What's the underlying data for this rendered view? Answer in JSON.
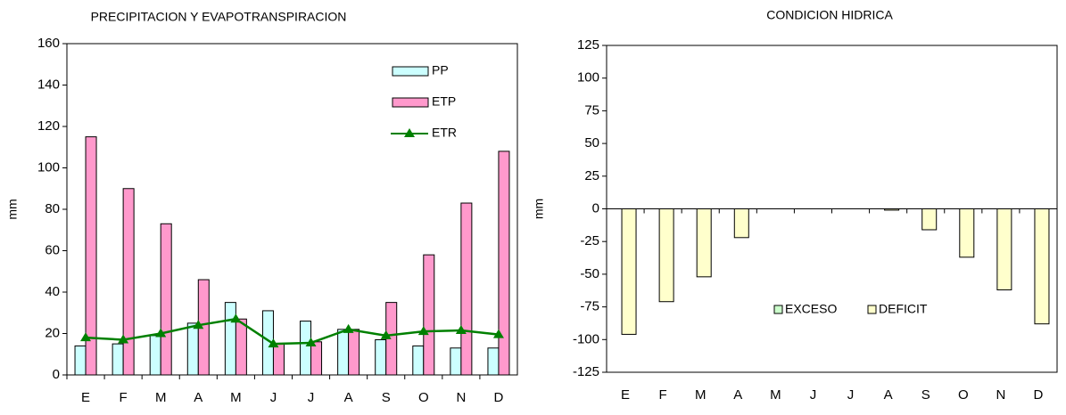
{
  "chart_data": [
    {
      "type": "bar",
      "title": "PRECIPITACION Y EVAPOTRANSPIRACION",
      "y_label": "mm",
      "categories": [
        "E",
        "F",
        "M",
        "A",
        "M",
        "J",
        "J",
        "A",
        "S",
        "O",
        "N",
        "D"
      ],
      "series": [
        {
          "name": "PP",
          "kind": "bar",
          "color": "#ccffff",
          "values": [
            14,
            15,
            19,
            25,
            35,
            31,
            26,
            22,
            17,
            14,
            13,
            13
          ]
        },
        {
          "name": "ETP",
          "kind": "bar",
          "color": "#ff99cc",
          "values": [
            115,
            90,
            73,
            46,
            27,
            15,
            16,
            22,
            35,
            58,
            83,
            108
          ]
        },
        {
          "name": "ETR",
          "kind": "line",
          "color": "#008000",
          "values": [
            18,
            17,
            20,
            24,
            27,
            15,
            15.5,
            22,
            19,
            21,
            21.5,
            19.5
          ]
        }
      ],
      "ylim": [
        0,
        160
      ],
      "yticks": [
        0,
        20,
        40,
        60,
        80,
        100,
        120,
        140,
        160
      ],
      "legend": "top-right"
    },
    {
      "type": "bar",
      "title": "CONDICION HIDRICA",
      "y_label": "mm",
      "categories": [
        "E",
        "F",
        "M",
        "A",
        "M",
        "J",
        "J",
        "A",
        "S",
        "O",
        "N",
        "D"
      ],
      "series": [
        {
          "name": "EXCESO",
          "kind": "bar",
          "color": "#ccffcc",
          "values": [
            0,
            0,
            0,
            0,
            0,
            0,
            0,
            0,
            0,
            0,
            0,
            0
          ]
        },
        {
          "name": "DEFICIT",
          "kind": "bar",
          "color": "#ffffcc",
          "values": [
            -96,
            -71,
            -52,
            -22,
            0,
            0,
            0,
            -1,
            -16,
            -37,
            -62,
            -88
          ]
        }
      ],
      "ylim": [
        -125,
        125
      ],
      "yticks": [
        -125,
        -100,
        -75,
        -50,
        -25,
        0,
        25,
        50,
        75,
        100,
        125
      ],
      "legend": "bottom-center"
    }
  ]
}
